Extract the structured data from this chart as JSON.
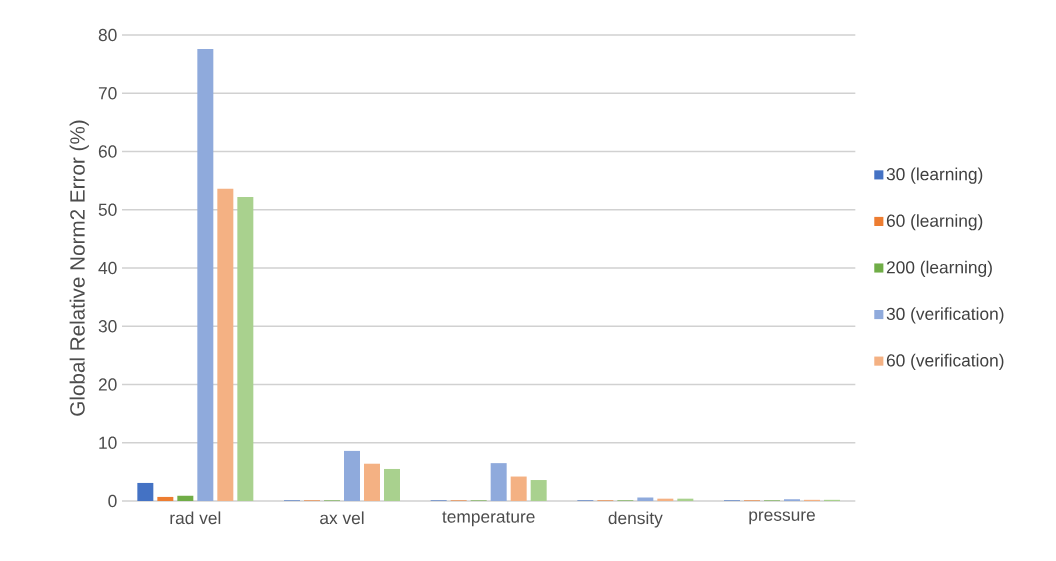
{
  "chart_data": {
    "type": "bar",
    "ylabel": "Global Relative Norm2 Error (%)",
    "categories": [
      "rad vel",
      "ax vel",
      "temperature",
      "density",
      "pressure"
    ],
    "series": [
      {
        "name": "30 (learning)",
        "color": "#4472c4",
        "values": [
          3.1,
          0.1,
          0.1,
          0.1,
          0.1
        ]
      },
      {
        "name": "60 (learning)",
        "color": "#ed7d31",
        "values": [
          0.7,
          0.1,
          0.1,
          0.1,
          0.1
        ]
      },
      {
        "name": "200 (learning)",
        "color": "#70ad47",
        "values": [
          0.9,
          0.1,
          0.1,
          0.1,
          0.1
        ]
      },
      {
        "name": "30 (verification)",
        "color": "#8faadc",
        "values": [
          77.6,
          8.6,
          6.5,
          0.6,
          0.3
        ]
      },
      {
        "name": "60 (verification)",
        "color": "#f4b183",
        "values": [
          53.6,
          6.4,
          4.2,
          0.4,
          0.2
        ]
      },
      {
        "color": "#a9d18e",
        "values": [
          52.2,
          5.5,
          3.6,
          0.4,
          0.2
        ]
      }
    ],
    "ylim": [
      0,
      80
    ],
    "yticks": [
      0,
      10,
      20,
      30,
      40,
      50,
      60,
      70,
      80
    ],
    "grid": "y",
    "legend": "right"
  }
}
